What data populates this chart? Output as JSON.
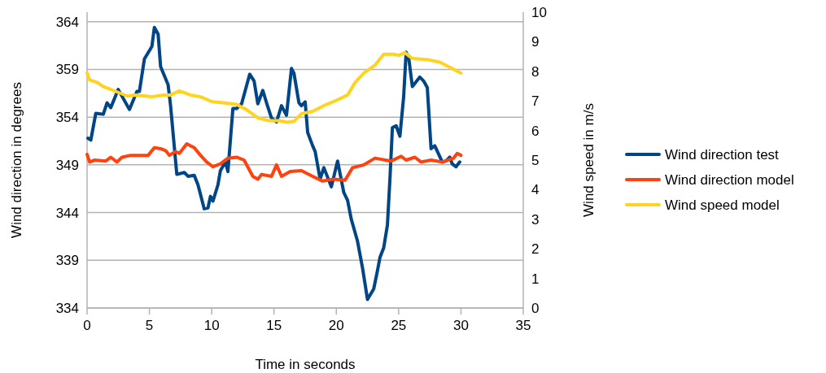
{
  "chart_data": {
    "type": "line",
    "xlabel": "Time in seconds",
    "ylabel": "Wind direction in degrees",
    "y2label": "Wind speed in m/s",
    "xlim": [
      0,
      35
    ],
    "xticks": [
      0,
      5,
      10,
      15,
      20,
      25,
      30,
      35
    ],
    "ylim": [
      334,
      365
    ],
    "yticks": [
      334,
      339,
      344,
      349,
      354,
      359,
      364
    ],
    "y2lim": [
      0,
      10
    ],
    "y2ticks": [
      0,
      1,
      2,
      3,
      4,
      5,
      6,
      7,
      8,
      9,
      10
    ],
    "grid": "y",
    "legend": "right",
    "marker": "none",
    "line_style": "solid",
    "series": [
      {
        "name": "Wind direction test",
        "color": "#004586",
        "x": [
          0.07,
          0.3,
          0.7,
          1.3,
          1.6,
          1.9,
          2.5,
          3.4,
          4.0,
          4.2,
          4.6,
          5.2,
          5.4,
          5.7,
          5.9,
          6.5,
          6.7,
          7.2,
          7.8,
          8.1,
          8.6,
          8.9,
          9.4,
          9.7,
          9.9,
          10.1,
          10.5,
          10.7,
          11.1,
          11.3,
          11.7,
          12.0,
          12.4,
          13.05,
          13.4,
          13.7,
          14.1,
          14.4,
          14.8,
          15.2,
          15.6,
          16.0,
          16.4,
          16.6,
          17.0,
          17.2,
          17.5,
          17.7,
          18.1,
          18.3,
          18.7,
          19.0,
          19.6,
          20.1,
          20.6,
          20.9,
          21.2,
          21.7,
          22.1,
          22.5,
          23.0,
          23.3,
          23.5,
          23.8,
          24.1,
          24.3,
          24.5,
          24.8,
          25.1,
          25.4,
          25.6,
          25.8,
          26.1,
          26.7,
          27.0,
          27.3,
          27.6,
          27.9,
          28.5,
          28.8,
          29.1,
          29.3,
          29.6,
          29.9
        ],
        "values": [
          351.8,
          351.6,
          354.4,
          354.3,
          355.5,
          355.0,
          356.9,
          354.8,
          356.7,
          356.7,
          360.1,
          361.4,
          363.4,
          362.7,
          359.3,
          357.4,
          355.2,
          348.0,
          348.2,
          347.8,
          347.9,
          346.9,
          344.4,
          344.5,
          345.7,
          345.2,
          346.9,
          348.4,
          349.3,
          348.3,
          354.9,
          354.9,
          355.4,
          358.5,
          357.8,
          355.4,
          356.8,
          355.5,
          353.9,
          353.5,
          355.2,
          354.2,
          359.1,
          358.6,
          355.5,
          355.2,
          355.6,
          352.4,
          351.0,
          350.4,
          347.5,
          348.7,
          346.7,
          349.4,
          346.1,
          345.3,
          343.3,
          341.0,
          338.2,
          334.9,
          336.0,
          337.9,
          339.3,
          340.3,
          342.7,
          347.5,
          352.9,
          353.1,
          352.0,
          356.1,
          360.8,
          360.3,
          357.2,
          358.2,
          357.8,
          357.1,
          350.7,
          351.0,
          349.3,
          349.4,
          349.8,
          349.1,
          348.8,
          349.3
        ]
      },
      {
        "name": "Wind direction model",
        "color": "#ff420e",
        "x": [
          0,
          0.2,
          0.63,
          1.5,
          1.9,
          2.4,
          2.8,
          3.5,
          4.6,
          4.9,
          5.4,
          5.9,
          6.3,
          6.6,
          7.1,
          7.4,
          8.0,
          8.6,
          9.1,
          9.6,
          10.1,
          10.7,
          11.3,
          12.0,
          12.6,
          13.3,
          13.7,
          14.0,
          14.8,
          15.2,
          15.6,
          16.3,
          17.2,
          18.1,
          18.9,
          19.8,
          20.7,
          21.3,
          22.2,
          23.1,
          24.4,
          25.2,
          25.6,
          26.3,
          26.8,
          27.6,
          28.5,
          29.4,
          29.7,
          30.0
        ],
        "values": [
          350.1,
          349.3,
          349.5,
          349.4,
          349.8,
          349.3,
          349.8,
          350.0,
          350.0,
          350.0,
          350.8,
          350.7,
          350.5,
          350.0,
          350.4,
          350.2,
          351.2,
          350.8,
          350.0,
          349.3,
          348.8,
          349.1,
          349.7,
          349.8,
          349.5,
          347.8,
          347.5,
          348.0,
          347.8,
          349.0,
          347.8,
          348.3,
          348.4,
          347.8,
          347.3,
          347.5,
          347.4,
          348.7,
          349.0,
          349.7,
          349.4,
          349.9,
          349.5,
          349.8,
          349.3,
          349.5,
          349.3,
          349.7,
          350.2,
          350.0
        ]
      },
      {
        "name": "Wind speed model",
        "color": "#ffd320",
        "axis": "y2",
        "x": [
          0,
          0.2,
          0.85,
          1.3,
          1.9,
          3.2,
          3.9,
          5.2,
          6.1,
          6.7,
          7.4,
          8.3,
          9.1,
          10.0,
          11.1,
          12.0,
          12.8,
          13.7,
          14.6,
          15.4,
          16.1,
          16.6,
          17.2,
          18.1,
          19.2,
          20.0,
          20.9,
          21.5,
          22.2,
          23.1,
          23.8,
          24.6,
          25.0,
          25.5,
          26.1,
          27.4,
          28.3,
          29.2,
          30.0
        ],
        "values": [
          7.95,
          7.71,
          7.62,
          7.48,
          7.39,
          7.17,
          7.2,
          7.14,
          7.2,
          7.2,
          7.34,
          7.2,
          7.14,
          6.98,
          6.93,
          6.88,
          6.7,
          6.43,
          6.33,
          6.33,
          6.28,
          6.31,
          6.57,
          6.65,
          6.88,
          7.02,
          7.2,
          7.62,
          7.94,
          8.21,
          8.58,
          8.58,
          8.54,
          8.63,
          8.44,
          8.39,
          8.31,
          8.12,
          7.94
        ]
      }
    ]
  }
}
